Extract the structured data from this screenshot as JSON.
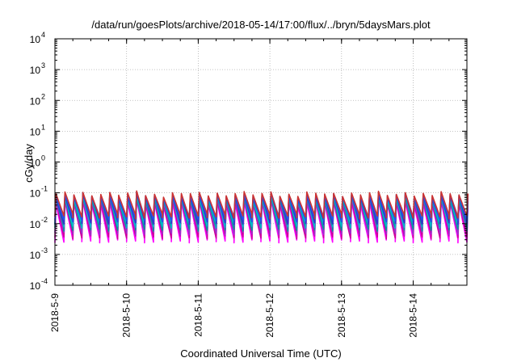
{
  "chart_data": {
    "type": "line",
    "title": "/data/run/goesPlots/archive/2018-05-14/17:00/flux/../bryn/5daysMars.plot",
    "xlabel": "Coordinated Universal Time (UTC)",
    "ylabel": "cGy/day",
    "yscale": "log",
    "ylim": [
      0.0001,
      10000
    ],
    "xlim": [
      "2018-05-09T00:00",
      "2018-05-14T18:00"
    ],
    "grid": true,
    "legend": "none",
    "xticks": [
      "2018-5-9",
      "2018-5-10",
      "2018-5-11",
      "2018-5-12",
      "2018-5-13",
      "2018-5-14"
    ],
    "ytick_exponents": [
      "-4",
      "-3",
      "-2",
      "-1",
      "0",
      "1",
      "2",
      "3",
      "4"
    ],
    "ytick_base": "10",
    "series_colors": [
      "#ff00ff",
      "#cc0099",
      "#9933cc",
      "#009999",
      "#00bbcc",
      "#3333cc",
      "#2255ee",
      "#cc3333"
    ],
    "series_levels": [
      {
        "peak": 0.045,
        "trough": 0.0028
      },
      {
        "peak": 0.052,
        "trough": 0.0038
      },
      {
        "peak": 0.058,
        "trough": 0.005
      },
      {
        "peak": 0.063,
        "trough": 0.0068
      },
      {
        "peak": 0.068,
        "trough": 0.0085
      },
      {
        "peak": 0.074,
        "trough": 0.011
      },
      {
        "peak": 0.08,
        "trough": 0.014
      },
      {
        "peak": 0.088,
        "trough": 0.017
      }
    ],
    "cycle_hours": 3,
    "variability": [
      1.0,
      1.12,
      0.93,
      1.2,
      0.98,
      1.08,
      1.18,
      0.9,
      1.04,
      1.25,
      0.95,
      1.1,
      0.88,
      1.15,
      1.02
    ]
  }
}
